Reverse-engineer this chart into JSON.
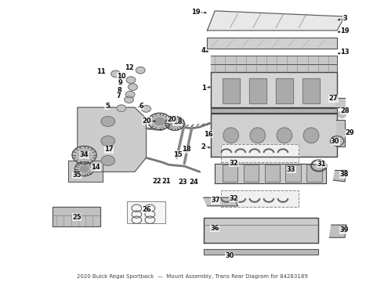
{
  "title": "2020 Buick Regal Sportback\nMount Assembly, Trans Rear Diagram for 84283189",
  "bg_color": "#ffffff",
  "fig_width": 4.9,
  "fig_height": 3.6,
  "dpi": 100,
  "label_fontsize": 6.0,
  "label_color": "#111111"
}
